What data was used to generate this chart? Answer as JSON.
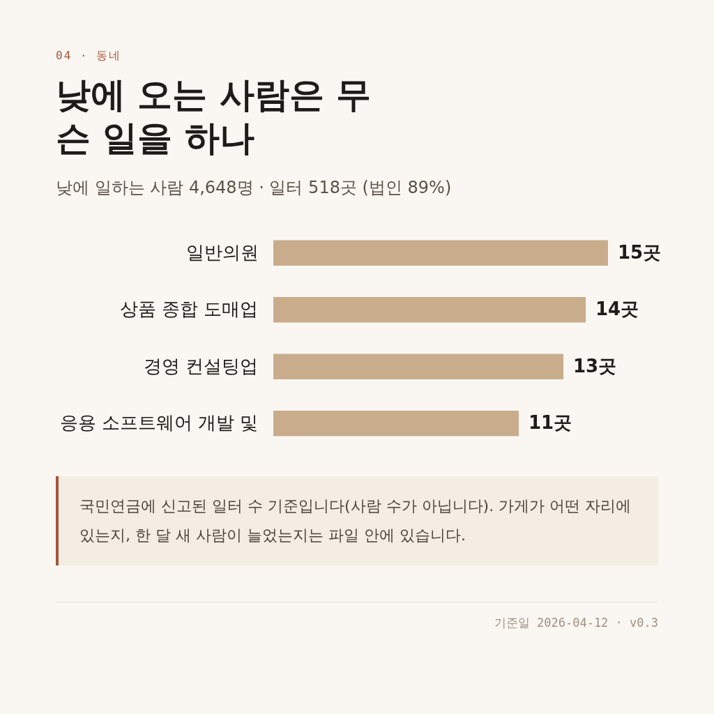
{
  "chart_data": {
    "type": "bar",
    "orientation": "horizontal",
    "title": "낮에 오는 사람은 무슨 일을 하나",
    "subtitle": "낮에 일하는 사람 4,648명 · 일터 518곳 (법인 89%)",
    "categories": [
      "일반의원",
      "상품 종합 도매업",
      "경영 컨설팅업",
      "응용 소프트웨어 개발 및"
    ],
    "values": [
      15,
      14,
      13,
      11
    ],
    "color": "#c9ac8b",
    "xlim": [
      0,
      15
    ],
    "value_labels": [
      "15곳",
      "14곳",
      "13곳",
      "11곳"
    ],
    "annotations": [
      "04 · 동네",
      "국민연금에 신고된 일터 수 기준입니다(사람 수가 아닙니다). 가게가 어떤 자리에 있는지, 한 달 새 사람이 늘었는지는 파일 안에 있습니다.",
      "기준일 2026-04-12 · v0.3"
    ]
  }
}
